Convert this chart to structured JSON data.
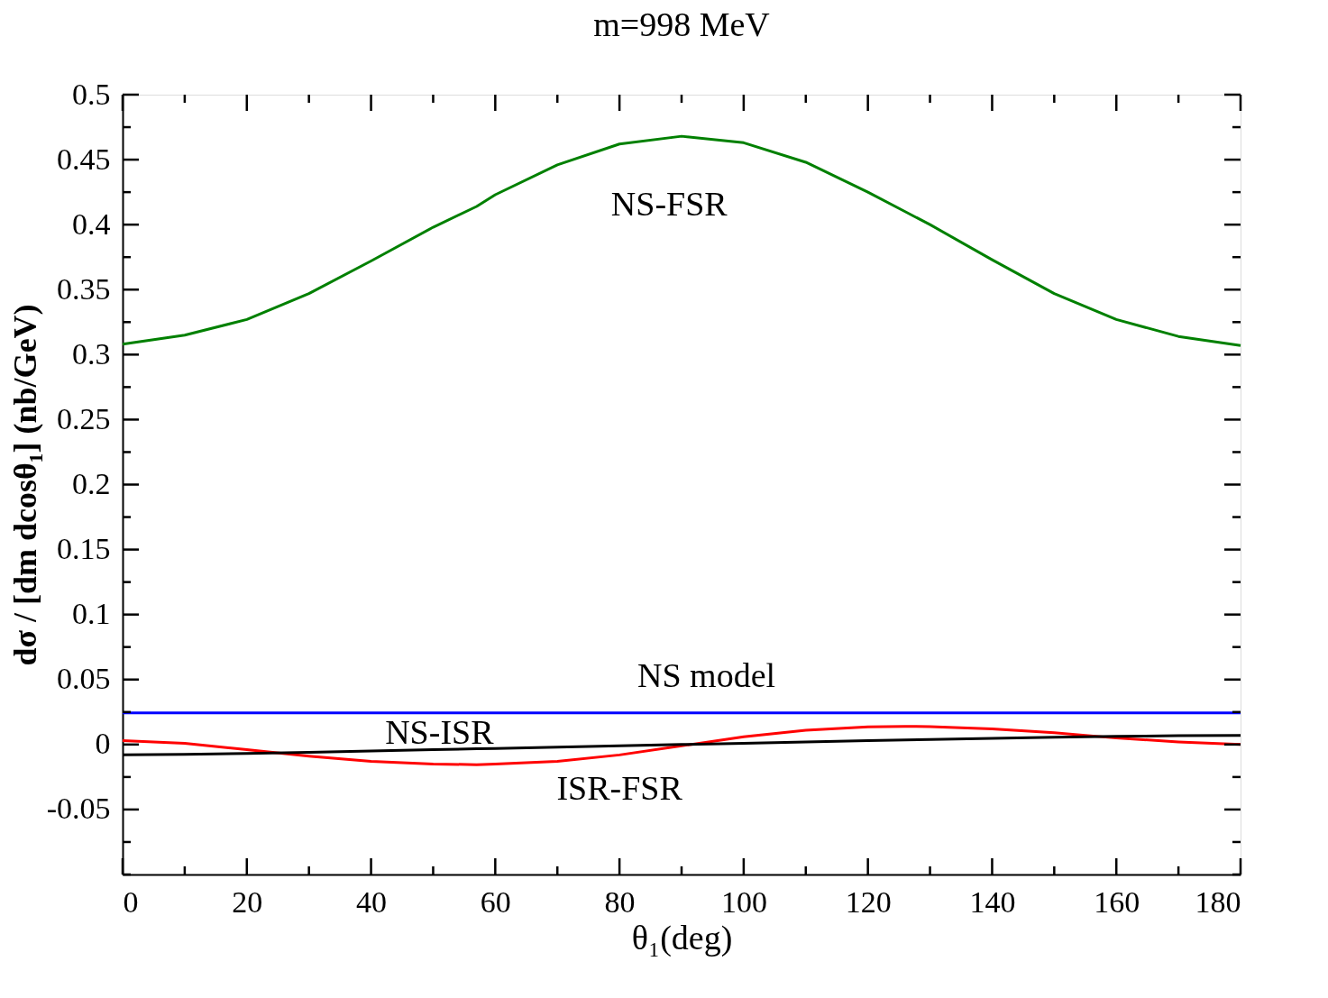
{
  "chart_data": {
    "type": "line",
    "title": "m=998 MeV",
    "xlabel": "θ₁(deg)",
    "ylabel": "dσ / [dm dcosθ₁]  (nb/GeV)",
    "x": [
      0,
      10,
      20,
      30,
      40,
      50,
      57,
      60,
      70,
      80,
      90,
      100,
      110,
      120,
      126,
      130,
      140,
      150,
      160,
      170,
      180
    ],
    "series": [
      {
        "name": "NS-FSR",
        "color": "#008000",
        "values": [
          0.308,
          0.315,
          0.327,
          0.347,
          0.372,
          0.398,
          0.414,
          0.423,
          0.446,
          0.462,
          0.468,
          0.463,
          0.448,
          0.425,
          0.41,
          0.4,
          0.373,
          0.347,
          0.327,
          0.314,
          0.307
        ]
      },
      {
        "name": "NS model",
        "color": "#0000ff",
        "values": [
          0.0243,
          0.0243,
          0.0243,
          0.0243,
          0.0243,
          0.0243,
          0.0243,
          0.0243,
          0.0243,
          0.0243,
          0.0243,
          0.0243,
          0.0243,
          0.0243,
          0.0243,
          0.0243,
          0.0243,
          0.0243,
          0.0243,
          0.0243,
          0.0243
        ]
      },
      {
        "name": "ISR-FSR",
        "color": "#ff0000",
        "values": [
          0.003,
          0.001,
          -0.004,
          -0.009,
          -0.013,
          -0.015,
          -0.0155,
          -0.015,
          -0.013,
          -0.008,
          -0.001,
          0.006,
          0.011,
          0.0135,
          0.014,
          0.0138,
          0.012,
          0.009,
          0.005,
          0.002,
          0.0
        ]
      },
      {
        "name": "NS-ISR",
        "color": "#000000",
        "values": [
          -0.008,
          -0.0075,
          -0.0068,
          -0.006,
          -0.005,
          -0.004,
          -0.0033,
          -0.003,
          -0.002,
          -0.001,
          0.0,
          0.001,
          0.002,
          0.003,
          0.0035,
          0.0038,
          0.0047,
          0.0056,
          0.0063,
          0.0068,
          0.007
        ]
      }
    ],
    "xlim": [
      0,
      180
    ],
    "ylim": [
      -0.1,
      0.5
    ],
    "xticks": [
      0,
      {
        "value": 10,
        "label": null
      },
      20,
      {
        "value": 30,
        "label": null
      },
      40,
      {
        "value": 50,
        "label": null
      },
      60,
      {
        "value": 70,
        "label": null
      },
      80,
      {
        "value": 90,
        "label": null
      },
      100,
      {
        "value": 110,
        "label": null
      },
      120,
      {
        "value": 130,
        "label": null
      },
      140,
      {
        "value": 150,
        "label": null
      },
      160,
      {
        "value": 170,
        "label": null
      },
      180
    ],
    "yticks": [
      {
        "value": -0.1,
        "label": null
      },
      {
        "value": -0.075,
        "label": null
      },
      -0.05,
      {
        "value": -0.025,
        "label": null
      },
      0,
      {
        "value": 0.025,
        "label": null
      },
      0.05,
      {
        "value": 0.075,
        "label": null
      },
      0.1,
      {
        "value": 0.125,
        "label": null
      },
      0.15,
      {
        "value": 0.175,
        "label": null
      },
      0.2,
      {
        "value": 0.225,
        "label": null
      },
      0.25,
      {
        "value": 0.275,
        "label": null
      },
      0.3,
      {
        "value": 0.325,
        "label": null
      },
      0.35,
      {
        "value": 0.375,
        "label": null
      },
      0.4,
      {
        "value": 0.425,
        "label": null
      },
      0.45,
      {
        "value": 0.475,
        "label": null
      },
      0.5
    ],
    "grid": false,
    "marker": "none",
    "line_style": "solid"
  }
}
